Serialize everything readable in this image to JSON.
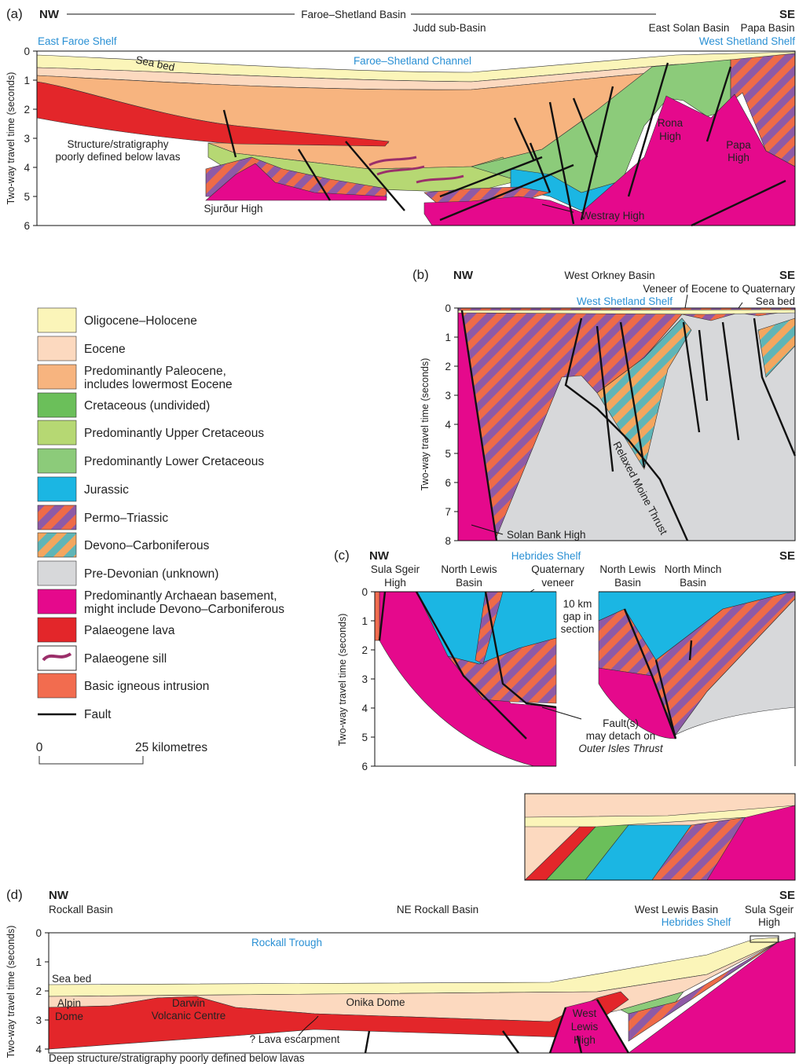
{
  "panel_a": {
    "label": "(a)",
    "nw": "NW",
    "se": "SE",
    "basin": "Faroe–Shetland Basin",
    "sub_basin": "Judd sub-Basin",
    "east_solan_basin": "East Solan Basin",
    "papa_basin": "Papa Basin",
    "east_faroe_shelf": "East Faroe Shelf",
    "west_shetland_shelf": "West Shetland Shelf",
    "channel": "Faroe–Shetland Channel",
    "sea_bed": "Sea bed",
    "note": [
      "Structure/stratigraphy",
      "poorly defined below lavas"
    ],
    "rona_high": [
      "Rona",
      "High"
    ],
    "papa_high": [
      "Papa",
      "High"
    ],
    "sjurdur_high": "Sjurður High",
    "westray_high": "Westray High",
    "axis_label": "Two-way travel time (seconds)",
    "ticks": [
      0,
      1,
      2,
      3,
      4,
      5,
      6
    ]
  },
  "panel_b": {
    "label": "(b)",
    "nw": "NW",
    "se": "SE",
    "west_orkney_basin": "West Orkney Basin",
    "veneer": "Veneer of Eocene to Quaternary",
    "west_shetland_shelf": "West Shetland Shelf",
    "sea_bed": "Sea bed",
    "thrust": "Relaxed Moine Thrust",
    "solan_bank_high": "Solan Bank High",
    "axis_label": "Two-way travel time (seconds)",
    "ticks": [
      0,
      1,
      2,
      3,
      4,
      5,
      6,
      7,
      8
    ]
  },
  "panel_c": {
    "label": "(c)",
    "nw": "NW",
    "se": "SE",
    "hebrides_shelf": "Hebrides Shelf",
    "sula_sgeir_high": [
      "Sula Sgeir",
      "High"
    ],
    "north_lewis_basin_1": [
      "North Lewis",
      "Basin"
    ],
    "quaternary_veneer": [
      "Quaternary",
      "veneer"
    ],
    "north_lewis_basin_2": [
      "North Lewis",
      "Basin"
    ],
    "north_minch_basin": [
      "North Minch",
      "Basin"
    ],
    "gap": [
      "10 km",
      "gap in",
      "section"
    ],
    "fault_note": [
      "Fault(s)",
      "may detach on",
      "Outer Isles Thrust"
    ],
    "axis_label": "Two-way travel time (seconds)",
    "ticks": [
      0,
      1,
      2,
      3,
      4,
      5,
      6
    ]
  },
  "legend": {
    "items": [
      {
        "label": [
          "Oligocene–Holocene"
        ]
      },
      {
        "label": [
          "Eocene"
        ]
      },
      {
        "label": [
          "Predominantly Paleocene,",
          "includes lowermost Eocene"
        ]
      },
      {
        "label": [
          "Cretaceous (undivided)"
        ]
      },
      {
        "label": [
          "Predominantly Upper Cretaceous"
        ]
      },
      {
        "label": [
          "Predominantly Lower Cretaceous"
        ]
      },
      {
        "label": [
          "Jurassic"
        ]
      },
      {
        "label": [
          "Permo–Triassic"
        ]
      },
      {
        "label": [
          "Devono–Carboniferous"
        ]
      },
      {
        "label": [
          "Pre-Devonian (unknown)"
        ]
      },
      {
        "label": [
          "Predominantly Archaean basement,",
          "might include Devono–Carboniferous"
        ]
      },
      {
        "label": [
          "Palaeogene lava"
        ]
      },
      {
        "label": [
          "Palaeogene sill"
        ]
      },
      {
        "label": [
          "Basic igneous intrusion"
        ]
      },
      {
        "label": [
          "Fault"
        ]
      }
    ],
    "scale_start": "0",
    "scale_end": "25 kilometres"
  },
  "panel_d": {
    "label": "(d)",
    "nw": "NW",
    "se": "SE",
    "rockall_basin": "Rockall Basin",
    "ne_rockall_basin": "NE Rockall Basin",
    "west_lewis_basin": "West Lewis Basin",
    "hebrides_shelf": "Hebrides Shelf",
    "sula_sgeir_high": [
      "Sula Sgeir",
      "High"
    ],
    "rockall_trough": "Rockall Trough",
    "sea_bed": "Sea bed",
    "alpin_dome": [
      "Alpin",
      "Dome"
    ],
    "darwin": [
      "Darwin",
      "Volcanic Centre"
    ],
    "onika_dome": "Onika Dome",
    "lava_escarpment": "? Lava escarpment",
    "west_lewis_high": [
      "West",
      "Lewis",
      "High"
    ],
    "note": "Deep structure/stratigraphy poorly defined below lavas",
    "axis_label": "Two-way travel time (seconds)",
    "ticks": [
      0,
      1,
      2,
      3,
      4
    ]
  }
}
